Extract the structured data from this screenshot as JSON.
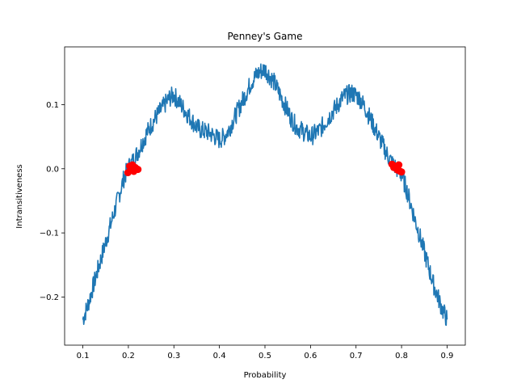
{
  "chart_data": {
    "type": "line",
    "title": "Penney's Game",
    "xlabel": "Probability",
    "ylabel": "Intransitiveness",
    "xlim": [
      0.06,
      0.94
    ],
    "ylim": [
      -0.275,
      0.19
    ],
    "xticks": [
      0.1,
      0.2,
      0.3,
      0.4,
      0.5,
      0.6,
      0.7,
      0.8,
      0.9
    ],
    "xtick_labels": [
      "0.1",
      "0.2",
      "0.3",
      "0.4",
      "0.5",
      "0.6",
      "0.7",
      "0.8",
      "0.9"
    ],
    "yticks": [
      -0.2,
      -0.1,
      0.0,
      0.1
    ],
    "ytick_labels": [
      "−0.2",
      "−0.1",
      "0.0",
      "0.1"
    ],
    "grid": false,
    "line_color": "#1f77b4",
    "marker_color": "#ff0000",
    "series": [
      {
        "kind": "line",
        "x": [
          0.1,
          0.11,
          0.12,
          0.13,
          0.14,
          0.15,
          0.16,
          0.17,
          0.18,
          0.19,
          0.2,
          0.21,
          0.22,
          0.23,
          0.24,
          0.25,
          0.26,
          0.27,
          0.28,
          0.29,
          0.3,
          0.31,
          0.32,
          0.33,
          0.34,
          0.35,
          0.36,
          0.37,
          0.38,
          0.39,
          0.4,
          0.41,
          0.42,
          0.43,
          0.44,
          0.45,
          0.46,
          0.47,
          0.48,
          0.49,
          0.5,
          0.51,
          0.52,
          0.53,
          0.54,
          0.55,
          0.56,
          0.57,
          0.58,
          0.59,
          0.6,
          0.61,
          0.62,
          0.63,
          0.64,
          0.65,
          0.66,
          0.67,
          0.68,
          0.69,
          0.7,
          0.71,
          0.72,
          0.73,
          0.74,
          0.75,
          0.76,
          0.77,
          0.78,
          0.79,
          0.8,
          0.81,
          0.82,
          0.83,
          0.84,
          0.85,
          0.86,
          0.87,
          0.88,
          0.89,
          0.9
        ],
        "y": [
          -0.235,
          -0.215,
          -0.19,
          -0.165,
          -0.14,
          -0.115,
          -0.09,
          -0.065,
          -0.04,
          -0.015,
          0.002,
          0.012,
          0.025,
          0.04,
          0.055,
          0.068,
          0.08,
          0.09,
          0.1,
          0.11,
          0.115,
          0.105,
          0.095,
          0.085,
          0.075,
          0.065,
          0.06,
          0.058,
          0.055,
          0.05,
          0.045,
          0.05,
          0.06,
          0.075,
          0.09,
          0.105,
          0.12,
          0.135,
          0.145,
          0.152,
          0.155,
          0.145,
          0.135,
          0.12,
          0.105,
          0.09,
          0.075,
          0.065,
          0.06,
          0.055,
          0.05,
          0.055,
          0.06,
          0.07,
          0.08,
          0.09,
          0.1,
          0.11,
          0.115,
          0.118,
          0.115,
          0.108,
          0.095,
          0.08,
          0.065,
          0.05,
          0.035,
          0.02,
          0.008,
          0.0,
          -0.01,
          -0.03,
          -0.055,
          -0.08,
          -0.105,
          -0.13,
          -0.155,
          -0.18,
          -0.2,
          -0.22,
          -0.235
        ]
      },
      {
        "kind": "scatter",
        "x": [
          0.199,
          0.203,
          0.206,
          0.209,
          0.212,
          0.215,
          0.218,
          0.221,
          0.779,
          0.783,
          0.787,
          0.791,
          0.794,
          0.797,
          0.8
        ],
        "y": [
          -0.006,
          0.004,
          -0.002,
          0.006,
          -0.004,
          0.002,
          0.0,
          -0.001,
          0.007,
          0.002,
          0.004,
          -0.002,
          0.006,
          -0.004,
          -0.005
        ]
      }
    ]
  }
}
